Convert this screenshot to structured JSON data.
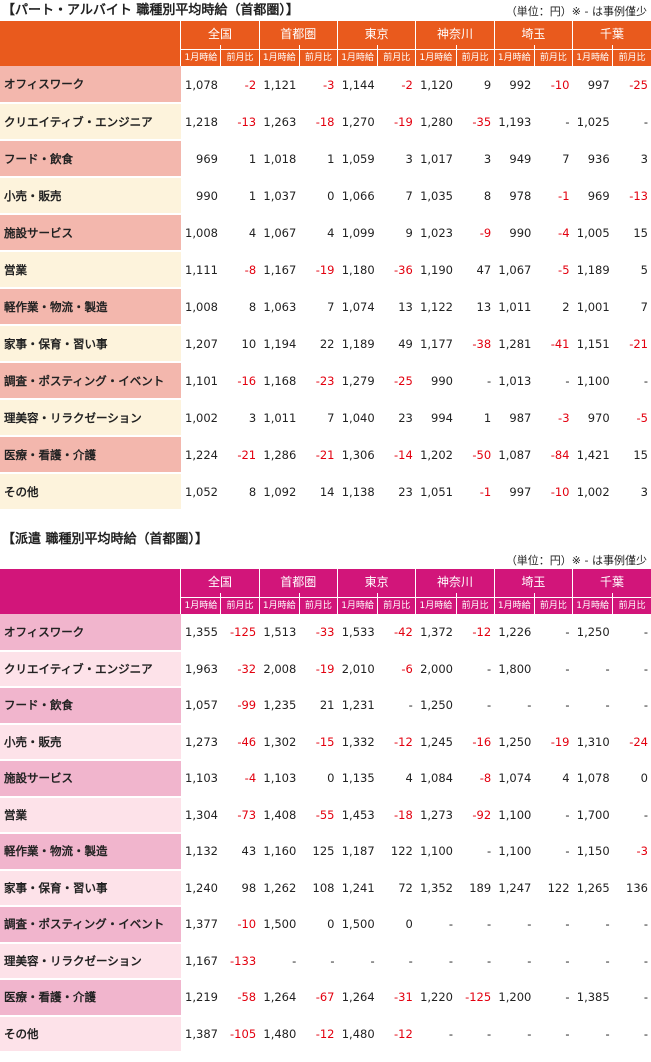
{
  "colors": {
    "parttime_header": "#e95a1d",
    "dispatch_header": "#d2157a",
    "negative": "#e3000f"
  },
  "parttime": {
    "title": "【パート・アルバイト 職種別平均時給（首都圏）】",
    "unit_note": "（単位：円）※ - は事例僅少",
    "regions": [
      "全国",
      "首都圏",
      "東京",
      "神奈川",
      "埼玉",
      "千葉"
    ],
    "sub_value": "1月時給",
    "sub_change": "前月比",
    "rows": [
      {
        "category": "オフィスワーク",
        "cells": [
          "1,078",
          "-2",
          "1,121",
          "-3",
          "1,144",
          "-2",
          "1,120",
          "9",
          "992",
          "-10",
          "997",
          "-25"
        ]
      },
      {
        "category": "クリエイティブ・エンジニア",
        "cells": [
          "1,218",
          "-13",
          "1,263",
          "-18",
          "1,270",
          "-19",
          "1,280",
          "-35",
          "1,193",
          "-",
          "1,025",
          "-"
        ]
      },
      {
        "category": "フード・飲食",
        "cells": [
          "969",
          "1",
          "1,018",
          "1",
          "1,059",
          "3",
          "1,017",
          "3",
          "949",
          "7",
          "936",
          "3"
        ]
      },
      {
        "category": "小売・販売",
        "cells": [
          "990",
          "1",
          "1,037",
          "0",
          "1,066",
          "7",
          "1,035",
          "8",
          "978",
          "-1",
          "969",
          "-13"
        ]
      },
      {
        "category": "施設サービス",
        "cells": [
          "1,008",
          "4",
          "1,067",
          "4",
          "1,099",
          "9",
          "1,023",
          "-9",
          "990",
          "-4",
          "1,005",
          "15"
        ]
      },
      {
        "category": "営業",
        "cells": [
          "1,111",
          "-8",
          "1,167",
          "-19",
          "1,180",
          "-36",
          "1,190",
          "47",
          "1,067",
          "-5",
          "1,189",
          "5"
        ]
      },
      {
        "category": "軽作業・物流・製造",
        "cells": [
          "1,008",
          "8",
          "1,063",
          "7",
          "1,074",
          "13",
          "1,122",
          "13",
          "1,011",
          "2",
          "1,001",
          "7"
        ]
      },
      {
        "category": "家事・保育・習い事",
        "cells": [
          "1,207",
          "10",
          "1,194",
          "22",
          "1,189",
          "49",
          "1,177",
          "-38",
          "1,281",
          "-41",
          "1,151",
          "-21"
        ]
      },
      {
        "category": "調査・ポスティング・イベント",
        "cells": [
          "1,101",
          "-16",
          "1,168",
          "-23",
          "1,279",
          "-25",
          "990",
          "-",
          "1,013",
          "-",
          "1,100",
          "-"
        ]
      },
      {
        "category": "理美容・リラクゼーション",
        "cells": [
          "1,002",
          "3",
          "1,011",
          "7",
          "1,040",
          "23",
          "994",
          "1",
          "987",
          "-3",
          "970",
          "-5"
        ]
      },
      {
        "category": "医療・看護・介護",
        "cells": [
          "1,224",
          "-21",
          "1,286",
          "-21",
          "1,306",
          "-14",
          "1,202",
          "-50",
          "1,087",
          "-84",
          "1,421",
          "15"
        ]
      },
      {
        "category": "その他",
        "cells": [
          "1,052",
          "8",
          "1,092",
          "14",
          "1,138",
          "23",
          "1,051",
          "-1",
          "997",
          "-10",
          "1,002",
          "3"
        ]
      }
    ]
  },
  "dispatch": {
    "title": "【派遣 職種別平均時給（首都圏）】",
    "unit_note": "（単位：円）※ - は事例僅少",
    "regions": [
      "全国",
      "首都圏",
      "東京",
      "神奈川",
      "埼玉",
      "千葉"
    ],
    "sub_value": "1月時給",
    "sub_change": "前月比",
    "rows": [
      {
        "category": "オフィスワーク",
        "cells": [
          "1,355",
          "-125",
          "1,513",
          "-33",
          "1,533",
          "-42",
          "1,372",
          "-12",
          "1,226",
          "-",
          "1,250",
          "-"
        ]
      },
      {
        "category": "クリエイティブ・エンジニア",
        "cells": [
          "1,963",
          "-32",
          "2,008",
          "-19",
          "2,010",
          "-6",
          "2,000",
          "-",
          "1,800",
          "-",
          "-",
          "-"
        ]
      },
      {
        "category": "フード・飲食",
        "cells": [
          "1,057",
          "-99",
          "1,235",
          "21",
          "1,231",
          "-",
          "1,250",
          "-",
          "-",
          "-",
          "-",
          "-"
        ]
      },
      {
        "category": "小売・販売",
        "cells": [
          "1,273",
          "-46",
          "1,302",
          "-15",
          "1,332",
          "-12",
          "1,245",
          "-16",
          "1,250",
          "-19",
          "1,310",
          "-24"
        ]
      },
      {
        "category": "施設サービス",
        "cells": [
          "1,103",
          "-4",
          "1,103",
          "0",
          "1,135",
          "4",
          "1,084",
          "-8",
          "1,074",
          "4",
          "1,078",
          "0"
        ]
      },
      {
        "category": "営業",
        "cells": [
          "1,304",
          "-73",
          "1,408",
          "-55",
          "1,453",
          "-18",
          "1,273",
          "-92",
          "1,100",
          "-",
          "1,700",
          "-"
        ]
      },
      {
        "category": "軽作業・物流・製造",
        "cells": [
          "1,132",
          "43",
          "1,160",
          "125",
          "1,187",
          "122",
          "1,100",
          "-",
          "1,100",
          "-",
          "1,150",
          "-3"
        ]
      },
      {
        "category": "家事・保育・習い事",
        "cells": [
          "1,240",
          "98",
          "1,262",
          "108",
          "1,241",
          "72",
          "1,352",
          "189",
          "1,247",
          "122",
          "1,265",
          "136"
        ]
      },
      {
        "category": "調査・ポスティング・イベント",
        "cells": [
          "1,377",
          "-10",
          "1,500",
          "0",
          "1,500",
          "0",
          "-",
          "-",
          "-",
          "-",
          "-",
          "-"
        ]
      },
      {
        "category": "理美容・リラクゼーション",
        "cells": [
          "1,167",
          "-133",
          "-",
          "-",
          "-",
          "-",
          "-",
          "-",
          "-",
          "-",
          "-",
          "-"
        ]
      },
      {
        "category": "医療・看護・介護",
        "cells": [
          "1,219",
          "-58",
          "1,264",
          "-67",
          "1,264",
          "-31",
          "1,220",
          "-125",
          "1,200",
          "-",
          "1,385",
          "-"
        ]
      },
      {
        "category": "その他",
        "cells": [
          "1,387",
          "-105",
          "1,480",
          "-12",
          "1,480",
          "-12",
          "-",
          "-",
          "-",
          "-",
          "-",
          "-"
        ]
      }
    ]
  }
}
